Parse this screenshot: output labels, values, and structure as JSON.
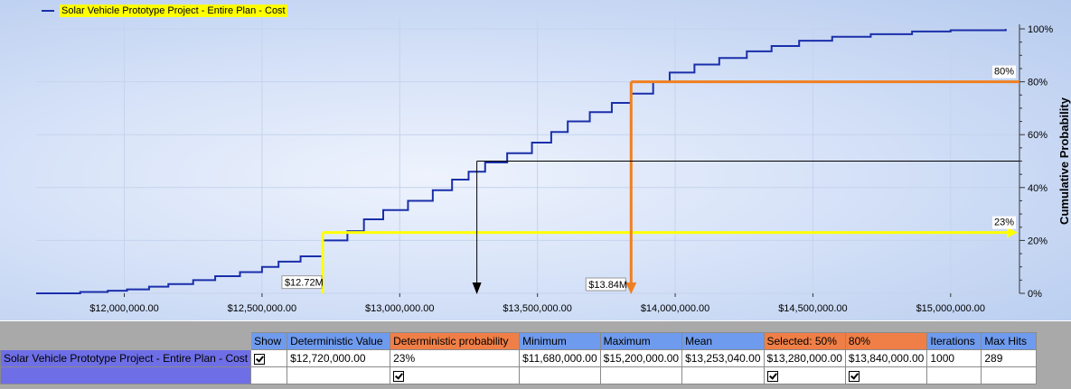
{
  "chart_data": {
    "type": "line",
    "title": "",
    "legend": {
      "label": "Solar Vehicle Prototype Project - Entire Plan - Cost",
      "placement": "top-left"
    },
    "xlabel": "",
    "ylabel": "Cumulative Probability",
    "xlim": [
      11680000,
      15250000
    ],
    "ylim": [
      0,
      100
    ],
    "x_ticks": [
      "$12,000,000.00",
      "$12,500,000.00",
      "$13,000,000.00",
      "$13,500,000.00",
      "$14,000,000.00",
      "$14,500,000.00",
      "$15,000,000.00"
    ],
    "x_tick_values": [
      12000000,
      12500000,
      13000000,
      13500000,
      14000000,
      14500000,
      15000000
    ],
    "y_ticks": [
      "100%",
      "80%",
      "60%",
      "40%",
      "20%",
      "0%"
    ],
    "y_tick_values": [
      100,
      80,
      60,
      40,
      20,
      0
    ],
    "grid": true,
    "series": [
      {
        "name": "Solar Vehicle Prototype Project - Entire Plan - Cost",
        "color": "#1a2faa",
        "step": true,
        "x": [
          11680000,
          11840000,
          11940000,
          12010000,
          12090000,
          12160000,
          12250000,
          12330000,
          12420000,
          12500000,
          12560000,
          12640000,
          12720000,
          12810000,
          12870000,
          12940000,
          13030000,
          13120000,
          13190000,
          13250000,
          13310000,
          13390000,
          13480000,
          13550000,
          13610000,
          13690000,
          13770000,
          13840000,
          13920000,
          13980000,
          14070000,
          14160000,
          14260000,
          14350000,
          14450000,
          14570000,
          14710000,
          14860000,
          15000000,
          15200000
        ],
        "y": [
          0,
          0.5,
          1,
          1.5,
          2.5,
          3.5,
          5,
          6.5,
          8,
          10,
          12,
          14,
          20,
          23.5,
          28,
          31.5,
          35,
          39,
          43,
          46,
          49.5,
          53,
          57,
          61,
          65,
          68.5,
          72,
          75.5,
          80,
          83.5,
          86.5,
          89,
          91.5,
          93.5,
          95.5,
          97,
          98,
          99,
          99.5,
          100
        ]
      }
    ],
    "annotations": [
      {
        "label": "$12.72M",
        "x": 12720000,
        "y_pct": 23,
        "pct_label": "23%",
        "color": "#ffff00",
        "role": "deterministic"
      },
      {
        "label": "$13.84M",
        "x": 13840000,
        "y_pct": 80,
        "pct_label": "80%",
        "color": "#f07f20",
        "role": "selected-80"
      },
      {
        "label": "",
        "x": 13280000,
        "y_pct": 50,
        "pct_label": "",
        "color": "#000000",
        "role": "selected-50"
      }
    ]
  },
  "table": {
    "headers": [
      "Show",
      "Deterministic Value",
      "Deterministic probability",
      "Minimum",
      "Maximum",
      "Mean",
      "Selected: 50%",
      "80%",
      "Iterations",
      "Max Hits"
    ],
    "row": {
      "label": "Solar Vehicle Prototype Project - Entire Plan - Cost",
      "show": "☑",
      "deterministic_value": "$12,720,000.00",
      "deterministic_probability": "23%",
      "minimum": "$11,680,000.00",
      "maximum": "$15,200,000.00",
      "mean": "$13,253,040.00",
      "selected_50": "$13,280,000.00",
      "p80": "$13,840,000.00",
      "iterations": "1000",
      "max_hits": "289"
    },
    "checkbox_row": {
      "deterministic_probability": "☑",
      "selected_50": "☑",
      "p80": "☑"
    }
  }
}
